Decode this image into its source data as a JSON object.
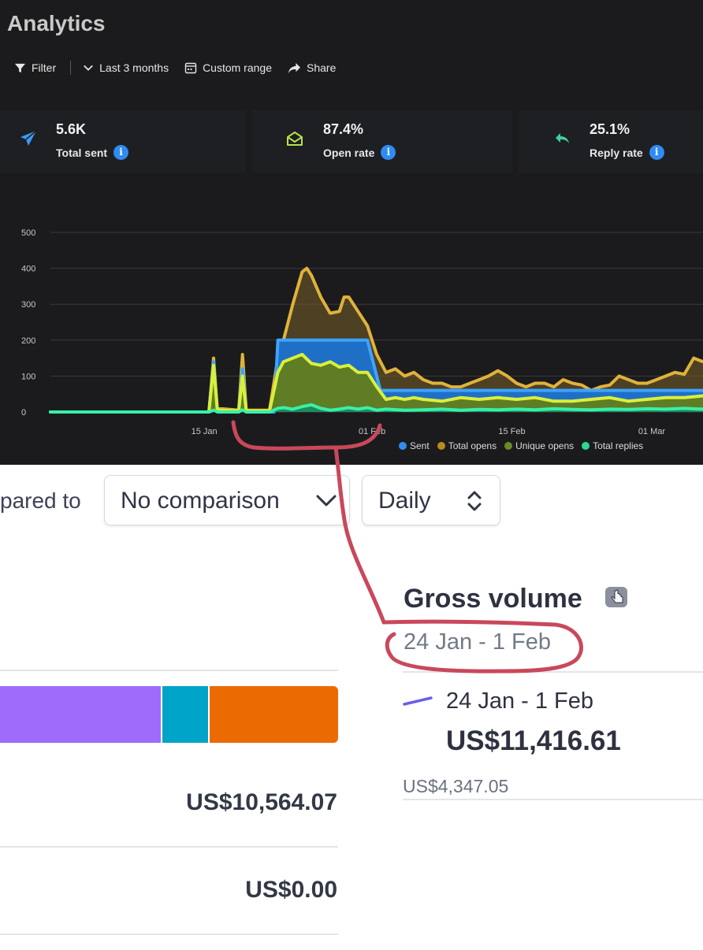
{
  "analytics": {
    "title": "Analytics",
    "toolbar": {
      "filter": "Filter",
      "range": "Last 3 months",
      "custom_range": "Custom range",
      "share": "Share"
    },
    "stats": [
      {
        "value": "5.6K",
        "label": "Total sent",
        "icon": "paper-plane-icon",
        "color": "#3b9bf5"
      },
      {
        "value": "87.4%",
        "label": "Open rate",
        "icon": "open-envelope-icon",
        "color": "#b6e34a"
      },
      {
        "value": "25.1%",
        "label": "Reply rate",
        "icon": "reply-arrow-icon",
        "color": "#3fd0a0"
      }
    ],
    "info_glyph": "i"
  },
  "chart_data": {
    "type": "area",
    "ylim": [
      0,
      500
    ],
    "y_ticks": [
      "0",
      "100",
      "200",
      "300",
      "400",
      "500"
    ],
    "x_ticks": [
      "15 Jan",
      "01 Feb",
      "15 Feb",
      "01 Mar"
    ],
    "grid": true,
    "legend_position": "bottom-right",
    "series": [
      {
        "name": "Sent",
        "color": "#2f8ff0",
        "points": [
          [
            0,
            0
          ],
          [
            17,
            0
          ],
          [
            17.5,
            140
          ],
          [
            17.9,
            0
          ],
          [
            20.2,
            0
          ],
          [
            20.6,
            120
          ],
          [
            21,
            0
          ],
          [
            24,
            0
          ],
          [
            24.4,
            200
          ],
          [
            34,
            200
          ],
          [
            35.4,
            60
          ],
          [
            44,
            60
          ],
          [
            55,
            60
          ],
          [
            62,
            60
          ],
          [
            70,
            60
          ]
        ]
      },
      {
        "name": "Total opens",
        "color": "#e0b23a",
        "points": [
          [
            0,
            0
          ],
          [
            17,
            0
          ],
          [
            17.5,
            150
          ],
          [
            17.9,
            10
          ],
          [
            20.2,
            5
          ],
          [
            20.6,
            160
          ],
          [
            21,
            5
          ],
          [
            23.5,
            5
          ],
          [
            24.4,
            150
          ],
          [
            25,
            200
          ],
          [
            26,
            300
          ],
          [
            27,
            390
          ],
          [
            27.5,
            400
          ],
          [
            28,
            380
          ],
          [
            29,
            320
          ],
          [
            30,
            275
          ],
          [
            31,
            280
          ],
          [
            31.5,
            320
          ],
          [
            32,
            320
          ],
          [
            33,
            280
          ],
          [
            34,
            240
          ],
          [
            35,
            160
          ],
          [
            36,
            110
          ],
          [
            37,
            120
          ],
          [
            38,
            100
          ],
          [
            39,
            110
          ],
          [
            40,
            90
          ],
          [
            41,
            80
          ],
          [
            42,
            80
          ],
          [
            43,
            70
          ],
          [
            44,
            70
          ],
          [
            45,
            80
          ],
          [
            46,
            90
          ],
          [
            47,
            100
          ],
          [
            48,
            115
          ],
          [
            49,
            100
          ],
          [
            50,
            80
          ],
          [
            51,
            70
          ],
          [
            52,
            80
          ],
          [
            53,
            80
          ],
          [
            54,
            70
          ],
          [
            55,
            90
          ],
          [
            56,
            80
          ],
          [
            57,
            75
          ],
          [
            58,
            60
          ],
          [
            59,
            70
          ],
          [
            60,
            75
          ],
          [
            61,
            100
          ],
          [
            62,
            90
          ],
          [
            63,
            80
          ],
          [
            64,
            80
          ],
          [
            65,
            90
          ],
          [
            66,
            100
          ],
          [
            67,
            110
          ],
          [
            68,
            105
          ],
          [
            69,
            150
          ],
          [
            70,
            140
          ]
        ]
      },
      {
        "name": "Unique opens",
        "color": "#6a8a22",
        "points": [
          [
            0,
            0
          ],
          [
            17,
            0
          ],
          [
            17.5,
            130
          ],
          [
            17.9,
            5
          ],
          [
            20.2,
            3
          ],
          [
            20.6,
            100
          ],
          [
            21,
            3
          ],
          [
            23.5,
            3
          ],
          [
            24.4,
            110
          ],
          [
            25,
            140
          ],
          [
            26,
            150
          ],
          [
            27,
            160
          ],
          [
            28,
            135
          ],
          [
            29,
            130
          ],
          [
            30,
            140
          ],
          [
            31,
            125
          ],
          [
            32,
            130
          ],
          [
            33,
            110
          ],
          [
            34,
            110
          ],
          [
            35,
            70
          ],
          [
            36,
            35
          ],
          [
            37,
            40
          ],
          [
            38,
            35
          ],
          [
            39,
            40
          ],
          [
            40,
            35
          ],
          [
            42,
            30
          ],
          [
            44,
            40
          ],
          [
            46,
            35
          ],
          [
            48,
            40
          ],
          [
            50,
            35
          ],
          [
            52,
            40
          ],
          [
            54,
            30
          ],
          [
            56,
            30
          ],
          [
            58,
            35
          ],
          [
            60,
            40
          ],
          [
            62,
            30
          ],
          [
            64,
            35
          ],
          [
            66,
            40
          ],
          [
            68,
            40
          ],
          [
            70,
            45
          ]
        ]
      },
      {
        "name": "Total replies",
        "color": "#2ed88f",
        "points": [
          [
            0,
            0
          ],
          [
            17,
            0
          ],
          [
            17.5,
            5
          ],
          [
            18,
            0
          ],
          [
            20.2,
            0
          ],
          [
            20.6,
            6
          ],
          [
            21,
            0
          ],
          [
            23.5,
            0
          ],
          [
            24.4,
            10
          ],
          [
            25,
            12
          ],
          [
            26,
            8
          ],
          [
            27,
            15
          ],
          [
            28,
            20
          ],
          [
            29,
            10
          ],
          [
            30,
            5
          ],
          [
            31,
            8
          ],
          [
            32,
            12
          ],
          [
            33,
            8
          ],
          [
            34,
            12
          ],
          [
            35,
            5
          ],
          [
            36,
            8
          ],
          [
            38,
            5
          ],
          [
            40,
            6
          ],
          [
            42,
            8
          ],
          [
            44,
            5
          ],
          [
            46,
            7
          ],
          [
            48,
            6
          ],
          [
            50,
            8
          ],
          [
            52,
            6
          ],
          [
            54,
            9
          ],
          [
            56,
            7
          ],
          [
            58,
            6
          ],
          [
            60,
            8
          ],
          [
            62,
            7
          ],
          [
            64,
            9
          ],
          [
            66,
            8
          ],
          [
            68,
            10
          ],
          [
            70,
            8
          ]
        ]
      }
    ],
    "x_tick_positions": [
      16.5,
      34.5,
      49.5,
      64.5
    ]
  },
  "payments": {
    "compared_label": "pared to",
    "comparison_select": "No comparison",
    "interval_select": "Daily",
    "gross_volume": {
      "title": "Gross volume",
      "date_range": "24 Jan - 1 Feb",
      "legend_period": "24 Jan - 1 Feb",
      "amount": "US$11,416.61",
      "previous_amount": "US$4,347.05",
      "legend_line_color": "#6a5cf0"
    },
    "breakdown_bar": [
      {
        "label": "purple",
        "color": "#9e6bfb",
        "share": 0.48
      },
      {
        "label": "teal",
        "color": "#00a4c8",
        "share": 0.14
      },
      {
        "label": "orange",
        "color": "#ec6a02",
        "share": 0.38
      }
    ],
    "breakdown_amounts": [
      "US$10,564.07",
      "US$0.00"
    ]
  },
  "annotation": {
    "color": "#c9485b"
  }
}
